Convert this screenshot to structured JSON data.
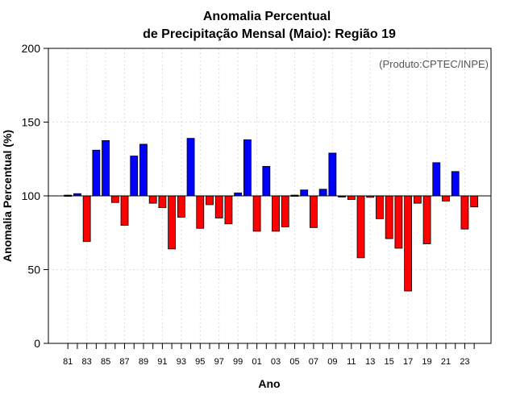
{
  "chart_data": {
    "type": "bar",
    "title_line1": "Anomalia Percentual",
    "title_line2": "de Precipitação Mensal (Maio): Região 19",
    "xlabel": "Ano",
    "ylabel": "Anomalia Percentual (%)",
    "credit": "(Produto:CPTEC/INPE)",
    "baseline": 100,
    "ylim": [
      0,
      200
    ],
    "yticks": [
      0,
      50,
      100,
      150,
      200
    ],
    "ytick_labels": [
      "0",
      "50",
      "100",
      "150",
      "200"
    ],
    "xtick_labels": [
      "81",
      "83",
      "85",
      "87",
      "89",
      "91",
      "93",
      "95",
      "97",
      "99",
      "01",
      "03",
      "05",
      "07",
      "09",
      "11",
      "13",
      "15",
      "17",
      "19",
      "21",
      "23"
    ],
    "categories": [
      "1981",
      "1982",
      "1983",
      "1984",
      "1985",
      "1986",
      "1987",
      "1988",
      "1989",
      "1990",
      "1991",
      "1992",
      "1993",
      "1994",
      "1995",
      "1996",
      "1997",
      "1998",
      "1999",
      "2000",
      "2001",
      "2002",
      "2003",
      "2004",
      "2005",
      "2006",
      "2007",
      "2008",
      "2009",
      "2010",
      "2011",
      "2012",
      "2013",
      "2014",
      "2015",
      "2016",
      "2017",
      "2018",
      "2019",
      "2020",
      "2021",
      "2022",
      "2023",
      "2024"
    ],
    "values": [
      100.5,
      101.5,
      69,
      131,
      137.5,
      95.5,
      80,
      127,
      135,
      95,
      92,
      64,
      85.5,
      139,
      78,
      94,
      85,
      81,
      102,
      138,
      76,
      120,
      76,
      79,
      100.5,
      104,
      78.5,
      104.5,
      129,
      100,
      97.5,
      58,
      99,
      84.5,
      71,
      64.5,
      35.5,
      95,
      67.5,
      122.5,
      96.5,
      116.5,
      77.5,
      92.5
    ],
    "colors": {
      "above": "#0000ff",
      "below": "#ff0000",
      "grid": "#dddddd"
    }
  }
}
